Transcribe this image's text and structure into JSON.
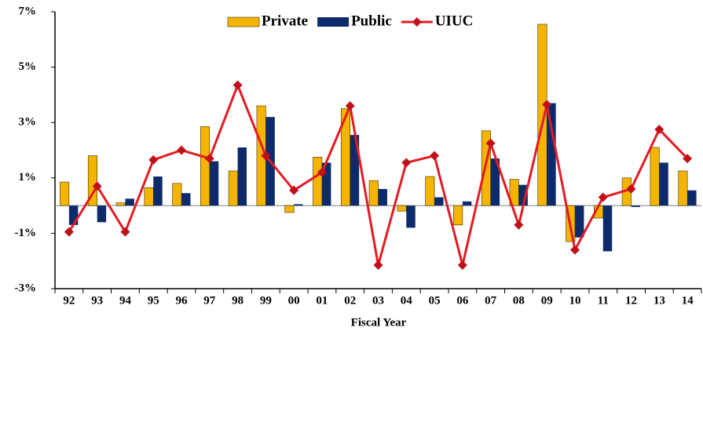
{
  "chart_data": {
    "type": "bar_line",
    "x_label": "Fiscal Year",
    "categories": [
      "92",
      "93",
      "94",
      "95",
      "96",
      "97",
      "98",
      "99",
      "00",
      "01",
      "02",
      "03",
      "04",
      "05",
      "06",
      "07",
      "08",
      "09",
      "10",
      "11",
      "12",
      "13",
      "14"
    ],
    "series": [
      {
        "name": "Private",
        "type": "bar",
        "color": "#f5b400",
        "values": [
          0.85,
          1.8,
          0.1,
          0.65,
          0.8,
          2.85,
          1.25,
          3.6,
          -0.25,
          1.75,
          3.5,
          0.9,
          -0.2,
          1.05,
          -0.7,
          2.7,
          0.95,
          6.55,
          -1.3,
          -0.45,
          1.0,
          2.1,
          1.25
        ]
      },
      {
        "name": "Public",
        "type": "bar",
        "color": "#0d2b6b",
        "values": [
          -0.7,
          -0.6,
          0.25,
          1.05,
          0.45,
          1.6,
          2.1,
          3.2,
          0.05,
          1.55,
          2.55,
          0.6,
          -0.8,
          0.3,
          0.15,
          1.7,
          0.75,
          3.7,
          -1.15,
          -1.65,
          -0.05,
          1.55,
          0.55
        ]
      },
      {
        "name": "UIUC",
        "type": "line",
        "color": "#e31b23",
        "values": [
          -0.95,
          0.7,
          -0.95,
          1.65,
          2.0,
          1.7,
          4.35,
          1.8,
          0.55,
          1.2,
          3.6,
          -2.15,
          1.55,
          1.8,
          -2.15,
          2.25,
          -0.7,
          3.65,
          -1.6,
          0.3,
          0.6,
          2.75,
          1.7
        ]
      }
    ],
    "ylim": [
      -3,
      7
    ],
    "yticks": [
      {
        "value": -3,
        "label": "-3%"
      },
      {
        "value": -1,
        "label": "-1%"
      },
      {
        "value": 1,
        "label": "1%"
      },
      {
        "value": 3,
        "label": "3%"
      },
      {
        "value": 5,
        "label": "5%"
      },
      {
        "value": 7,
        "label": "7%"
      }
    ],
    "legend": "top"
  }
}
